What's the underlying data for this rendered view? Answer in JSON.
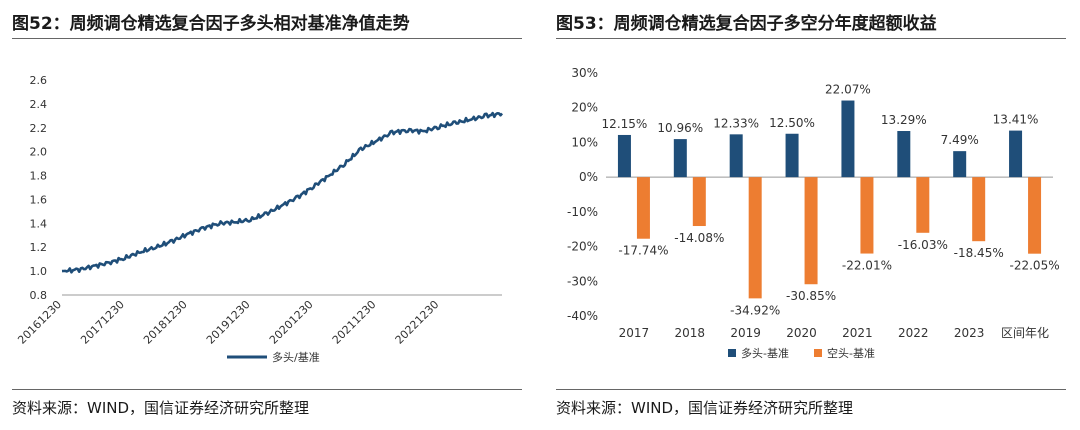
{
  "left_panel": {
    "title": "图52：周频调仓精选复合因子多头相对基准净值走势",
    "source": "资料来源：WIND，国信证券经济研究所整理"
  },
  "right_panel": {
    "title": "图53：周频调仓精选复合因子多空分年度超额收益",
    "source": "资料来源：WIND，国信证券经济研究所整理"
  },
  "colors": {
    "navy": "#1f4e79",
    "orange": "#ed7d31"
  },
  "chart_data": [
    {
      "type": "line",
      "title": "",
      "ylim": [
        0.8,
        2.6
      ],
      "y_ticks": [
        "0.8",
        "1.0",
        "1.2",
        "1.4",
        "1.6",
        "1.8",
        "2.0",
        "2.2",
        "2.4",
        "2.6"
      ],
      "x_ticks": [
        "20161230",
        "20171230",
        "20181230",
        "20191230",
        "20201230",
        "20211230",
        "20221230"
      ],
      "legend": "bottom",
      "series": [
        {
          "name": "多头/基准",
          "color": "#1f4e79",
          "x": [
            "2016-12-30",
            "2017-03-31",
            "2017-06-30",
            "2017-09-30",
            "2017-12-30",
            "2018-03-31",
            "2018-06-30",
            "2018-09-30",
            "2018-12-30",
            "2019-03-31",
            "2019-06-30",
            "2019-09-30",
            "2019-12-30",
            "2020-03-31",
            "2020-06-30",
            "2020-09-30",
            "2020-12-30",
            "2021-03-31",
            "2021-06-30",
            "2021-09-30",
            "2021-12-30",
            "2022-03-31",
            "2022-06-30",
            "2022-09-30",
            "2022-12-30",
            "2023-03-31",
            "2023-06-30",
            "2023-09-30",
            "2023-12-29"
          ],
          "values": [
            1.0,
            1.01,
            1.04,
            1.07,
            1.11,
            1.16,
            1.2,
            1.25,
            1.31,
            1.36,
            1.4,
            1.41,
            1.43,
            1.48,
            1.55,
            1.62,
            1.71,
            1.8,
            1.9,
            2.02,
            2.09,
            2.16,
            2.18,
            2.17,
            2.21,
            2.24,
            2.27,
            2.3,
            2.32
          ]
        }
      ]
    },
    {
      "type": "bar",
      "title": "",
      "ylim": [
        -40,
        30
      ],
      "y_ticks": [
        "-40%",
        "-30%",
        "-20%",
        "-10%",
        "0%",
        "10%",
        "20%",
        "30%"
      ],
      "categories": [
        "2017",
        "2018",
        "2019",
        "2020",
        "2021",
        "2022",
        "2023",
        "区间年化"
      ],
      "legend": "bottom",
      "series": [
        {
          "name": "多头-基准",
          "color": "#1f4e79",
          "values": [
            12.15,
            10.96,
            12.33,
            12.5,
            22.07,
            13.29,
            7.49,
            13.41
          ],
          "labels": [
            "12.15%",
            "10.96%",
            "12.33%",
            "12.50%",
            "22.07%",
            "13.29%",
            "7.49%",
            "13.41%"
          ]
        },
        {
          "name": "空头-基准",
          "color": "#ed7d31",
          "values": [
            -17.74,
            -14.08,
            -34.92,
            -30.85,
            -22.01,
            -16.03,
            -18.45,
            -22.05
          ],
          "labels": [
            "-17.74%",
            "-14.08%",
            "-34.92%",
            "-30.85%",
            "-22.01%",
            "-16.03%",
            "-18.45%",
            "-22.05%"
          ]
        }
      ]
    }
  ]
}
